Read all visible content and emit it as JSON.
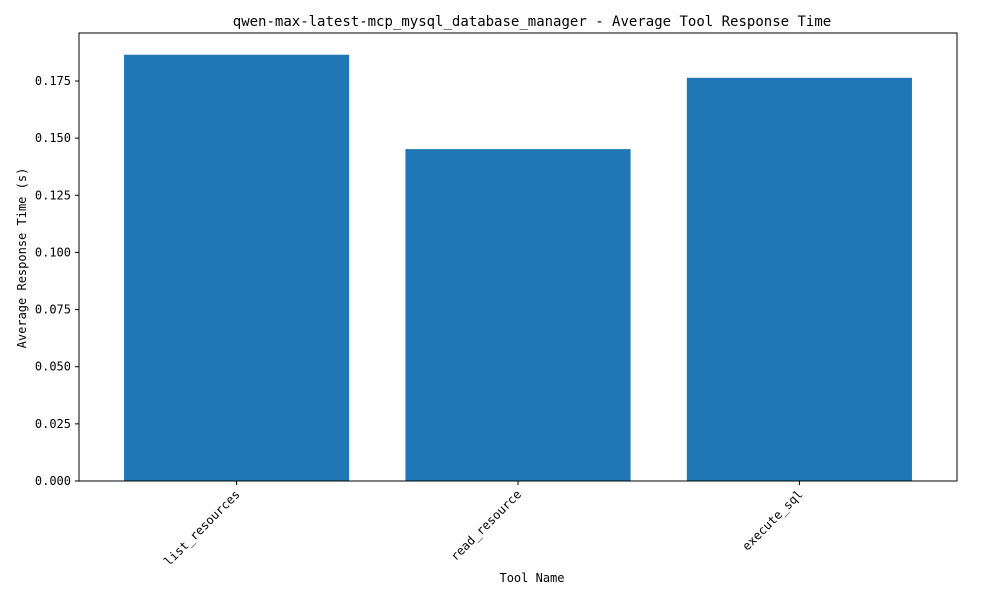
{
  "chart_data": {
    "type": "bar",
    "title": "qwen-max-latest-mcp_mysql_database_manager - Average Tool Response Time",
    "xlabel": "Tool Name",
    "ylabel": "Average Response Time (s)",
    "categories": [
      "list_resources",
      "read_resource",
      "execute_sql"
    ],
    "values": [
      0.1865,
      0.1452,
      0.1764
    ],
    "ylim": [
      0,
      0.196
    ],
    "yticks": [
      0.0,
      0.025,
      0.05,
      0.075,
      0.1,
      0.125,
      0.15,
      0.175
    ],
    "ytick_labels": [
      "0.000",
      "0.025",
      "0.050",
      "0.075",
      "0.100",
      "0.125",
      "0.150",
      "0.175"
    ],
    "grid": false,
    "bar_color": "#1f77b4"
  }
}
